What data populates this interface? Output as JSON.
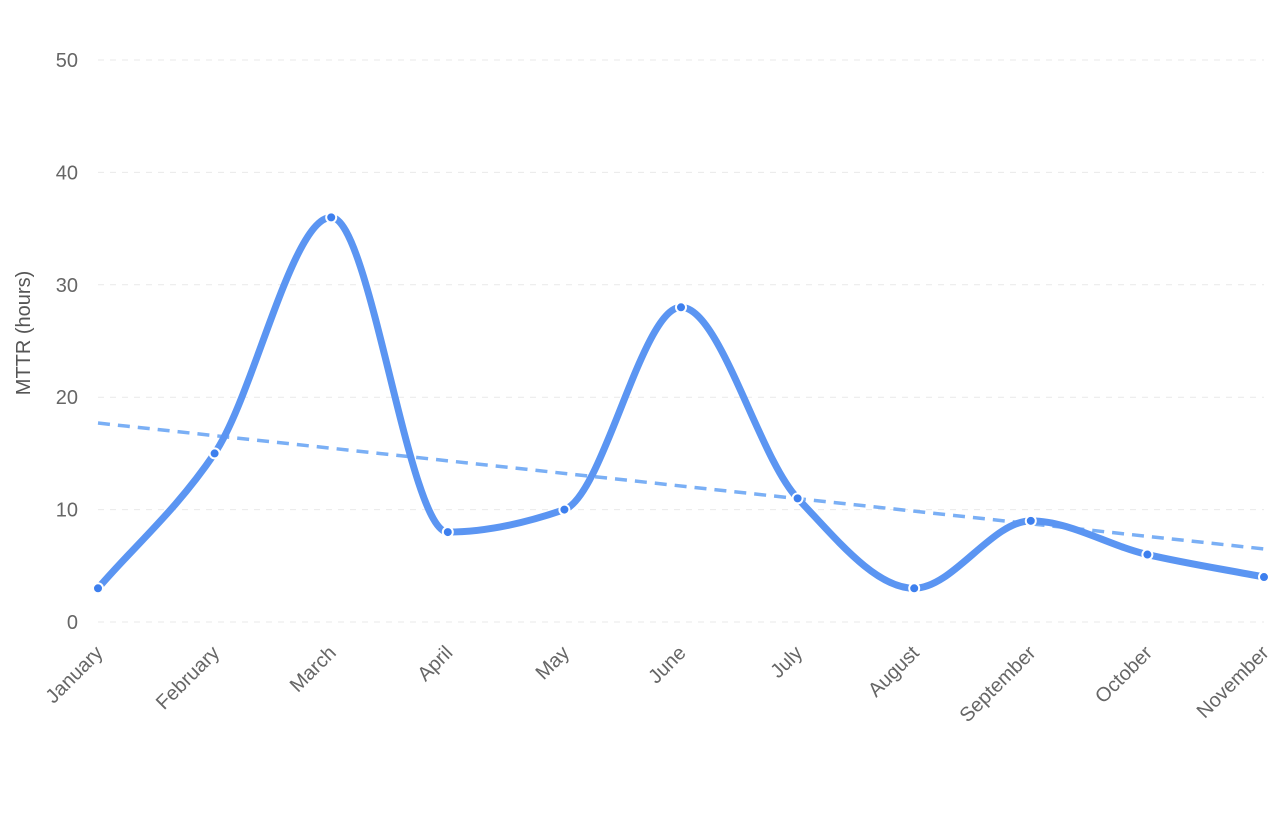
{
  "chart_data": {
    "type": "line",
    "title": "",
    "xlabel": "",
    "ylabel": "MTTR (hours)",
    "categories": [
      "January",
      "February",
      "March",
      "April",
      "May",
      "June",
      "July",
      "August",
      "September",
      "October",
      "November"
    ],
    "series": [
      {
        "values": [
          3,
          15,
          36,
          8,
          10,
          28,
          11,
          3,
          9,
          6,
          4
        ],
        "color": "#5b95f2",
        "smooth": true,
        "markers": true
      }
    ],
    "trendline": {
      "start": 17.7,
      "end": 6.5,
      "color": "#7aaff5",
      "style": "dashed"
    },
    "ylim": [
      0,
      50
    ],
    "yticks": [
      0,
      10,
      20,
      30,
      40,
      50
    ],
    "grid": true,
    "grid_style": "dashed",
    "legend": "none"
  }
}
